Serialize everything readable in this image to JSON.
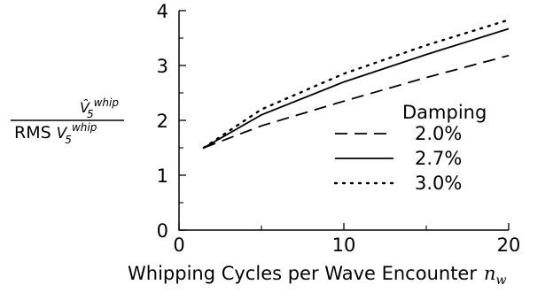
{
  "chart_data": {
    "type": "line",
    "xlabel": "Whipping Cycles per Wave Encounter",
    "xlabel_symbol": "n",
    "xlabel_symbol_sub": "w",
    "ylabel": {
      "numerator": "V̂",
      "numerator_sub": "5",
      "numerator_sup": "whip",
      "denominator_prefix": "RMS",
      "denominator": "V",
      "denominator_sub": "5",
      "denominator_sup": "whip"
    },
    "xlim": [
      0,
      20
    ],
    "ylim": [
      0,
      4
    ],
    "x_ticks": [
      0,
      10,
      20
    ],
    "x_tick_labels": [
      "0",
      "10",
      "20"
    ],
    "y_ticks": [
      0,
      1,
      2,
      3,
      4
    ],
    "y_tick_labels": [
      "0",
      "1",
      "2",
      "3",
      "4"
    ],
    "grid": false,
    "legend_title": "Damping",
    "legend_placement": "lower-right",
    "series": [
      {
        "name": "2.0%",
        "style": "dashed",
        "x": [
          1.5,
          5,
          10,
          15,
          20
        ],
        "y": [
          1.5,
          1.9,
          2.35,
          2.78,
          3.18
        ]
      },
      {
        "name": "2.7%",
        "style": "solid",
        "x": [
          1.5,
          5,
          10,
          15,
          20
        ],
        "y": [
          1.5,
          2.1,
          2.7,
          3.2,
          3.67
        ]
      },
      {
        "name": "3.0%",
        "style": "dotted",
        "x": [
          1.5,
          5,
          10,
          15,
          20
        ],
        "y": [
          1.5,
          2.2,
          2.85,
          3.37,
          3.83
        ]
      }
    ]
  }
}
